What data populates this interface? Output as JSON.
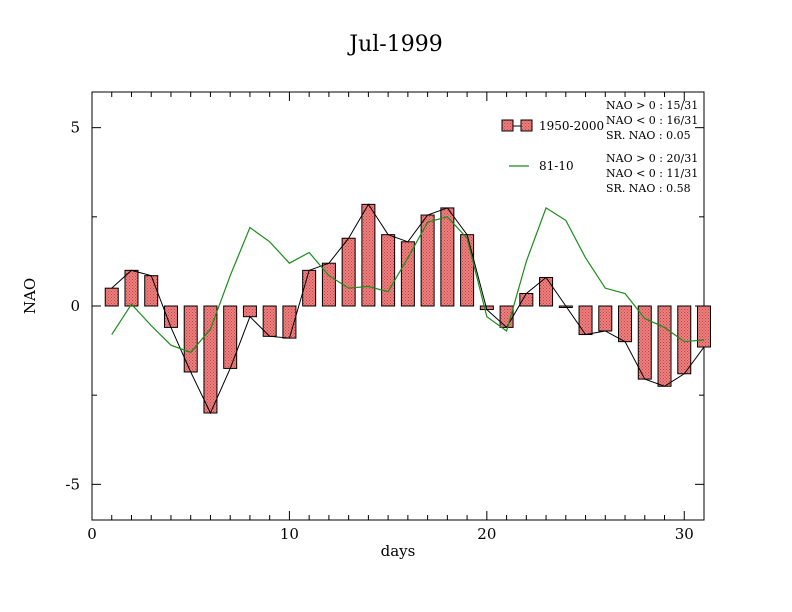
{
  "chart_data": {
    "type": "bar",
    "title": "Jul-1999",
    "xlabel": "days",
    "ylabel": "NAO",
    "xlim": [
      0,
      31
    ],
    "ylim": [
      -6,
      6
    ],
    "xticks": [
      0,
      10,
      20,
      30
    ],
    "yticks": [
      -5,
      0,
      5
    ],
    "x": [
      1,
      2,
      3,
      4,
      5,
      6,
      7,
      8,
      9,
      10,
      11,
      12,
      13,
      14,
      15,
      16,
      17,
      18,
      19,
      20,
      21,
      22,
      23,
      24,
      25,
      26,
      27,
      28,
      29,
      30,
      31
    ],
    "series": [
      {
        "name": "1950-2000",
        "kind": "bar",
        "values": [
          0.5,
          1.0,
          0.85,
          -0.6,
          -1.85,
          -3.0,
          -1.75,
          -0.3,
          -0.85,
          -0.9,
          1.0,
          1.2,
          1.9,
          2.85,
          2.0,
          1.8,
          2.55,
          2.75,
          2.0,
          -0.1,
          -0.6,
          0.35,
          0.8,
          0.0,
          -0.8,
          -0.7,
          -1.0,
          -2.05,
          -2.25,
          -1.9,
          -1.15
        ]
      },
      {
        "name": "81-10",
        "kind": "line",
        "values": [
          -0.8,
          0.05,
          -0.55,
          -1.1,
          -1.3,
          -0.65,
          0.85,
          2.2,
          1.8,
          1.2,
          1.5,
          0.85,
          0.5,
          0.55,
          0.4,
          1.35,
          2.35,
          2.5,
          1.9,
          -0.3,
          -0.7,
          1.25,
          2.75,
          2.4,
          1.35,
          0.5,
          0.35,
          -0.35,
          -0.6,
          -1.0,
          -0.95
        ]
      }
    ],
    "legend": "top-right",
    "stats_1950_2000": [
      "NAO > 0 :  15/31",
      "NAO < 0 :  16/31",
      "SR. NAO :  0.05"
    ],
    "stats_81_10": [
      "NAO > 0 :  20/31",
      "NAO < 0 :  11/31",
      "SR. NAO :  0.58"
    ],
    "colors": {
      "bar_fill": "#f08080",
      "bar_stroke": "#000000",
      "anomaly_line": "#000000",
      "climatology_line": "#1a8c1a"
    }
  }
}
